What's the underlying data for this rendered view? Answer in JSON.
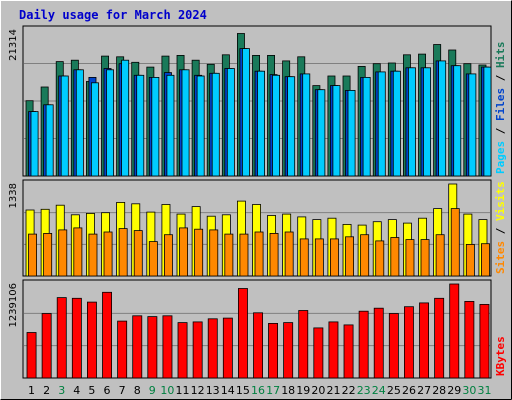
{
  "chart_data": [
    {
      "type": "bar",
      "title": "Daily usage for March 2024",
      "y_max_label": "21314",
      "y_max": 21314,
      "categories": [
        "1",
        "2",
        "3",
        "4",
        "5",
        "6",
        "7",
        "8",
        "9",
        "10",
        "11",
        "12",
        "13",
        "14",
        "15",
        "16",
        "17",
        "18",
        "19",
        "20",
        "21",
        "22",
        "23",
        "24",
        "25",
        "26",
        "27",
        "28",
        "29",
        "30",
        "31"
      ],
      "weekend_days": [
        "3",
        "9",
        "10",
        "16",
        "17",
        "23",
        "24",
        "30",
        "31"
      ],
      "right_labels": [
        "Pages",
        "Files",
        "Hits"
      ],
      "series": [
        {
          "name": "Hits",
          "color": "#1a7a5a",
          "values": [
            11000,
            13000,
            16700,
            16900,
            13800,
            17500,
            17400,
            16600,
            15900,
            17500,
            17600,
            16900,
            16300,
            17700,
            20800,
            17600,
            17600,
            16800,
            17400,
            13200,
            14600,
            14600,
            16000,
            16400,
            16500,
            17700,
            17800,
            19200,
            18400,
            16400,
            16200
          ]
        },
        {
          "name": "Files",
          "color": "#0044cc",
          "values": [
            9400,
            10400,
            14600,
            15500,
            14400,
            15700,
            16400,
            14700,
            14400,
            15100,
            15500,
            14700,
            15000,
            15700,
            18600,
            15300,
            14800,
            14500,
            14900,
            12600,
            13200,
            12500,
            14400,
            15200,
            15300,
            15800,
            15800,
            16800,
            16100,
            14900,
            15900
          ]
        },
        {
          "name": "Pages",
          "color": "#00ccff",
          "values": [
            9400,
            10400,
            14600,
            15500,
            13600,
            15500,
            16900,
            14700,
            14400,
            14700,
            15500,
            14600,
            15000,
            15700,
            18600,
            15300,
            14700,
            14500,
            14900,
            12600,
            13200,
            12500,
            14400,
            15200,
            15300,
            15800,
            15800,
            16800,
            16100,
            14900,
            15900
          ]
        }
      ]
    },
    {
      "type": "bar",
      "y_max_label": "1338",
      "y_max": 1338,
      "categories": [
        "1",
        "2",
        "3",
        "4",
        "5",
        "6",
        "7",
        "8",
        "9",
        "10",
        "11",
        "12",
        "13",
        "14",
        "15",
        "16",
        "17",
        "18",
        "19",
        "20",
        "21",
        "22",
        "23",
        "24",
        "25",
        "26",
        "27",
        "28",
        "29",
        "30",
        "31"
      ],
      "right_labels": [
        "Sites",
        "Visits"
      ],
      "series": [
        {
          "name": "Visits",
          "color": "#ffff00",
          "values": [
            960,
            970,
            1030,
            890,
            910,
            920,
            1070,
            1050,
            930,
            1040,
            900,
            1010,
            870,
            890,
            1090,
            1040,
            880,
            900,
            860,
            820,
            840,
            750,
            740,
            790,
            820,
            770,
            840,
            980,
            1338,
            900,
            820
          ]
        },
        {
          "name": "Sites",
          "color": "#ff8800",
          "values": [
            610,
            620,
            670,
            700,
            610,
            640,
            690,
            660,
            500,
            600,
            700,
            680,
            670,
            610,
            610,
            640,
            620,
            640,
            540,
            540,
            540,
            570,
            600,
            510,
            560,
            530,
            530,
            600,
            980,
            460,
            470
          ]
        }
      ]
    },
    {
      "type": "bar",
      "y_max_label": "1239106",
      "y_max": 1239106,
      "categories": [
        "1",
        "2",
        "3",
        "4",
        "5",
        "6",
        "7",
        "8",
        "9",
        "10",
        "11",
        "12",
        "13",
        "14",
        "15",
        "16",
        "17",
        "18",
        "19",
        "20",
        "21",
        "22",
        "23",
        "24",
        "25",
        "26",
        "27",
        "28",
        "29",
        "30",
        "31"
      ],
      "right_labels": [
        "KBytes"
      ],
      "series": [
        {
          "name": "KBytes",
          "color": "#ff0000",
          "values": [
            600000,
            850000,
            1060000,
            1050000,
            1000000,
            1130000,
            750000,
            820000,
            810000,
            820000,
            730000,
            740000,
            780000,
            790000,
            1180000,
            860000,
            720000,
            730000,
            890000,
            660000,
            740000,
            700000,
            880000,
            920000,
            850000,
            940000,
            990000,
            1050000,
            1239106,
            1010000,
            970000
          ]
        }
      ]
    }
  ]
}
